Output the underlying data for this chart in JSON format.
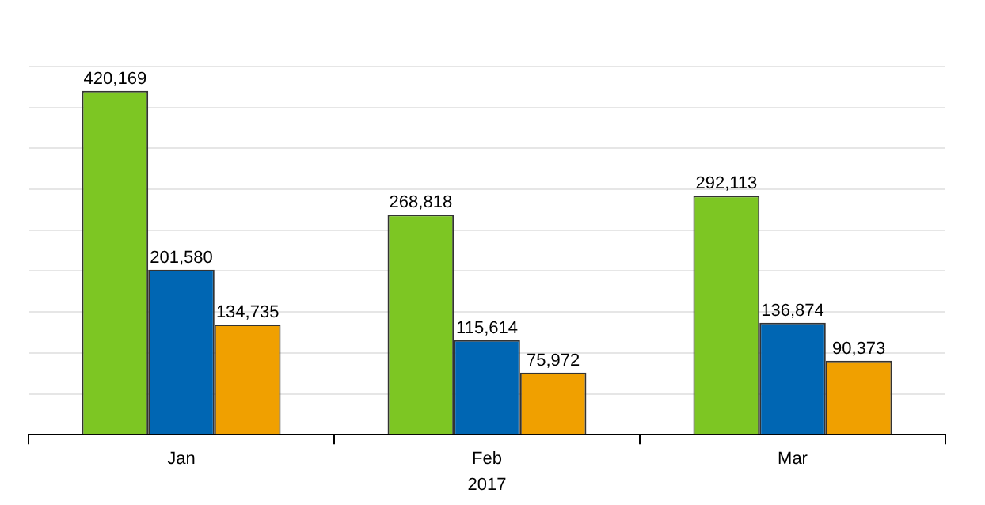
{
  "chart_data": {
    "type": "bar",
    "xlabel": "2017",
    "categories": [
      "Jan",
      "Feb",
      "Mar"
    ],
    "series": [
      {
        "color": "#7dc623",
        "values": [
          420169,
          268818,
          292113
        ],
        "value_labels": [
          "420,169",
          "268,818",
          "292,113"
        ]
      },
      {
        "color": "#0066b3",
        "values": [
          201580,
          115614,
          136874
        ],
        "value_labels": [
          "201,580",
          "115,614",
          "136,874"
        ]
      },
      {
        "color": "#f0a000",
        "values": [
          134735,
          75972,
          90373
        ],
        "value_labels": [
          "134,735",
          "75,972",
          "90,373"
        ]
      }
    ],
    "ylim": [
      0,
      450000
    ],
    "yticks": [
      {
        "value": 0,
        "label": null
      },
      {
        "value": 50000,
        "label": null
      },
      {
        "value": 100000,
        "label": null
      },
      {
        "value": 150000,
        "label": null
      },
      {
        "value": 200000,
        "label": null
      },
      {
        "value": 250000,
        "label": null
      },
      {
        "value": 300000,
        "label": null
      },
      {
        "value": 350000,
        "label": null
      },
      {
        "value": 400000,
        "label": null
      },
      {
        "value": 450000,
        "label": null
      }
    ],
    "grid": "y",
    "legend": false
  }
}
